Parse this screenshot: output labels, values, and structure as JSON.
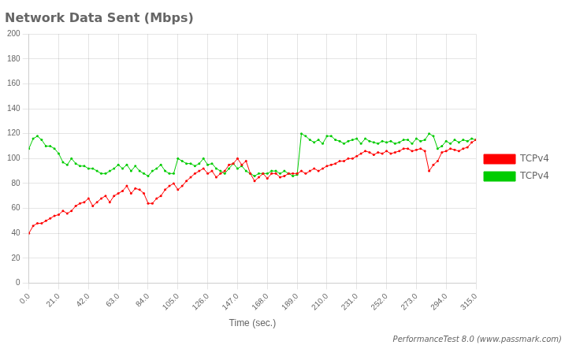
{
  "chart_data": {
    "type": "line",
    "title": "Network Data Sent (Mbps)",
    "xlabel": "Time (sec.)",
    "annotation": "PerformanceTest 8.0 (www.passmark.com)",
    "x": [
      0,
      3,
      6,
      9,
      12,
      15,
      18,
      21,
      24,
      27,
      30,
      33,
      36,
      39,
      42,
      45,
      48,
      51,
      54,
      57,
      60,
      63,
      66,
      69,
      72,
      75,
      78,
      81,
      84,
      87,
      90,
      93,
      96,
      99,
      102,
      105,
      108,
      111,
      114,
      117,
      120,
      123,
      126,
      129,
      132,
      135,
      138,
      141,
      144,
      147,
      150,
      153,
      156,
      159,
      162,
      165,
      168,
      171,
      174,
      177,
      180,
      183,
      186,
      189,
      192,
      195,
      198,
      201,
      204,
      207,
      210,
      213,
      216,
      219,
      222,
      225,
      228,
      231,
      234,
      237,
      240,
      243,
      246,
      249,
      252,
      255,
      258,
      261,
      264,
      267,
      270,
      273,
      276,
      279,
      282,
      285,
      288,
      291,
      294,
      297,
      300,
      303,
      306,
      309,
      312,
      315
    ],
    "series": [
      {
        "name": "TCPv4",
        "color": "#ff0000",
        "values": [
          40,
          46,
          48,
          48,
          50,
          52,
          54,
          55,
          58,
          56,
          58,
          62,
          64,
          65,
          68,
          62,
          65,
          68,
          70,
          65,
          70,
          72,
          74,
          78,
          72,
          76,
          75,
          72,
          64,
          64,
          68,
          70,
          75,
          78,
          80,
          75,
          78,
          82,
          85,
          88,
          90,
          92,
          88,
          90,
          85,
          88,
          90,
          95,
          96,
          100,
          95,
          98,
          88,
          82,
          85,
          88,
          84,
          88,
          88,
          85,
          86,
          88,
          88,
          88,
          90,
          88,
          90,
          92,
          90,
          92,
          94,
          95,
          96,
          98,
          98,
          100,
          100,
          102,
          104,
          106,
          105,
          103,
          105,
          104,
          106,
          104,
          105,
          106,
          108,
          108,
          106,
          107,
          108,
          106,
          90,
          95,
          98,
          105,
          106,
          108,
          107,
          106,
          108,
          109,
          113,
          115
        ]
      },
      {
        "name": "TCPv4",
        "color": "#00cc00",
        "values": [
          108,
          116,
          118,
          115,
          110,
          110,
          108,
          104,
          97,
          95,
          100,
          96,
          94,
          94,
          92,
          92,
          90,
          88,
          88,
          90,
          92,
          95,
          92,
          95,
          90,
          94,
          90,
          88,
          86,
          90,
          92,
          95,
          90,
          88,
          88,
          100,
          98,
          96,
          96,
          94,
          96,
          100,
          95,
          96,
          92,
          90,
          88,
          92,
          96,
          92,
          94,
          90,
          88,
          86,
          88,
          88,
          88,
          90,
          90,
          88,
          90,
          88,
          86,
          87,
          120,
          118,
          115,
          113,
          115,
          112,
          118,
          118,
          115,
          114,
          112,
          114,
          115,
          116,
          112,
          116,
          114,
          113,
          112,
          114,
          113,
          114,
          112,
          113,
          115,
          115,
          112,
          116,
          114,
          115,
          120,
          118,
          108,
          110,
          114,
          112,
          115,
          113,
          115,
          114,
          116,
          115
        ]
      }
    ],
    "xlim": [
      0,
      315
    ],
    "xticks": [
      {
        "value": 0,
        "label": "0.0"
      },
      {
        "value": 21,
        "label": "21.0"
      },
      {
        "value": 42,
        "label": "42.0"
      },
      {
        "value": 63,
        "label": "63.0"
      },
      {
        "value": 84,
        "label": "84.0"
      },
      {
        "value": 105,
        "label": "105.0"
      },
      {
        "value": 126,
        "label": "126.0"
      },
      {
        "value": 147,
        "label": "147.0"
      },
      {
        "value": 168,
        "label": "168.0"
      },
      {
        "value": 189,
        "label": "189.0"
      },
      {
        "value": 210,
        "label": "210.0"
      },
      {
        "value": 231,
        "label": "231.0"
      },
      {
        "value": 252,
        "label": "252.0"
      },
      {
        "value": 273,
        "label": "273.0"
      },
      {
        "value": 294,
        "label": "294.0"
      },
      {
        "value": 315,
        "label": "315.0"
      }
    ],
    "ylim": [
      0,
      200
    ],
    "yticks": [
      0,
      20,
      40,
      60,
      80,
      100,
      120,
      140,
      160,
      180,
      200
    ],
    "grid": true,
    "legend": "right",
    "marker": "circle"
  }
}
